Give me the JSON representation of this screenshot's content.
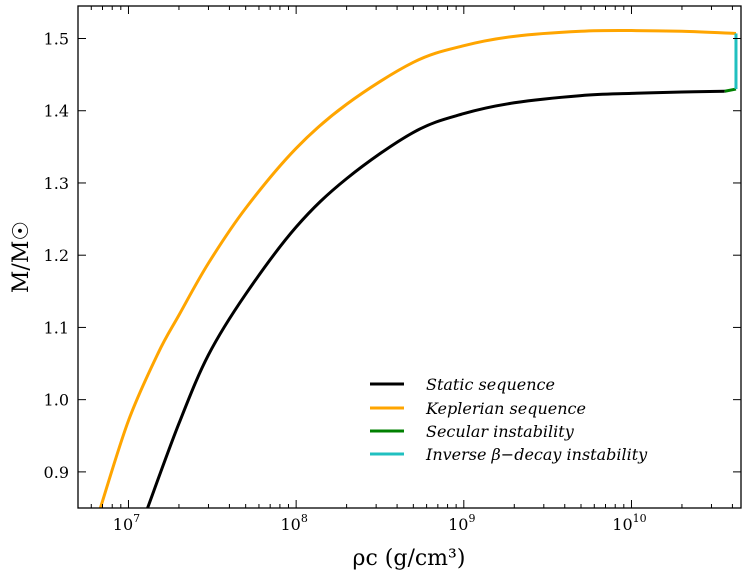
{
  "chart_data": {
    "type": "line",
    "title": "",
    "xlabel": "ρc (g/cm³)",
    "ylabel": "M/M☉",
    "xscale": "log",
    "xlim": [
      5000000,
      45000000000
    ],
    "ylim": [
      0.85,
      1.545
    ],
    "grid": false,
    "legend_position": "lower-right",
    "xticks": [
      {
        "value": 10000000,
        "base": "10",
        "exp": "7"
      },
      {
        "value": 100000000,
        "base": "10",
        "exp": "8"
      },
      {
        "value": 1000000000,
        "base": "10",
        "exp": "9"
      },
      {
        "value": 10000000000,
        "base": "10",
        "exp": "10"
      }
    ],
    "yticks": [
      {
        "value": 0.9,
        "label": "0.9"
      },
      {
        "value": 1.0,
        "label": "1.0"
      },
      {
        "value": 1.1,
        "label": "1.1"
      },
      {
        "value": 1.2,
        "label": "1.2"
      },
      {
        "value": 1.3,
        "label": "1.3"
      },
      {
        "value": 1.4,
        "label": "1.4"
      },
      {
        "value": 1.5,
        "label": "1.5"
      }
    ],
    "series": [
      {
        "name": "Static sequence",
        "color": "#000000",
        "x": [
          13000000,
          20000000,
          30000000,
          50000000,
          100000000,
          200000000,
          500000000,
          1000000000,
          2000000000,
          5000000000,
          10000000000,
          20000000000,
          36000000000
        ],
        "y": [
          0.85,
          0.967,
          1.062,
          1.146,
          1.239,
          1.306,
          1.37,
          1.396,
          1.411,
          1.421,
          1.424,
          1.426,
          1.427
        ]
      },
      {
        "name": "Keplerian sequence",
        "color": "#ffa500",
        "x": [
          6800000,
          10000000,
          15000000,
          20000000,
          30000000,
          50000000,
          100000000,
          200000000,
          500000000,
          1000000000,
          2000000000,
          5000000000,
          10000000000,
          20000000000,
          42000000000
        ],
        "y": [
          0.85,
          0.971,
          1.064,
          1.117,
          1.189,
          1.265,
          1.348,
          1.409,
          1.467,
          1.49,
          1.503,
          1.51,
          1.511,
          1.51,
          1.507
        ]
      },
      {
        "name": "Secular instability",
        "color": "#008000",
        "x": [
          36000000000,
          42000000000
        ],
        "y": [
          1.427,
          1.43
        ]
      },
      {
        "name": "Inverse β−decay instability",
        "color": "#20c0c0",
        "x": [
          42000000000,
          42000000000
        ],
        "y": [
          1.43,
          1.507
        ]
      }
    ]
  }
}
